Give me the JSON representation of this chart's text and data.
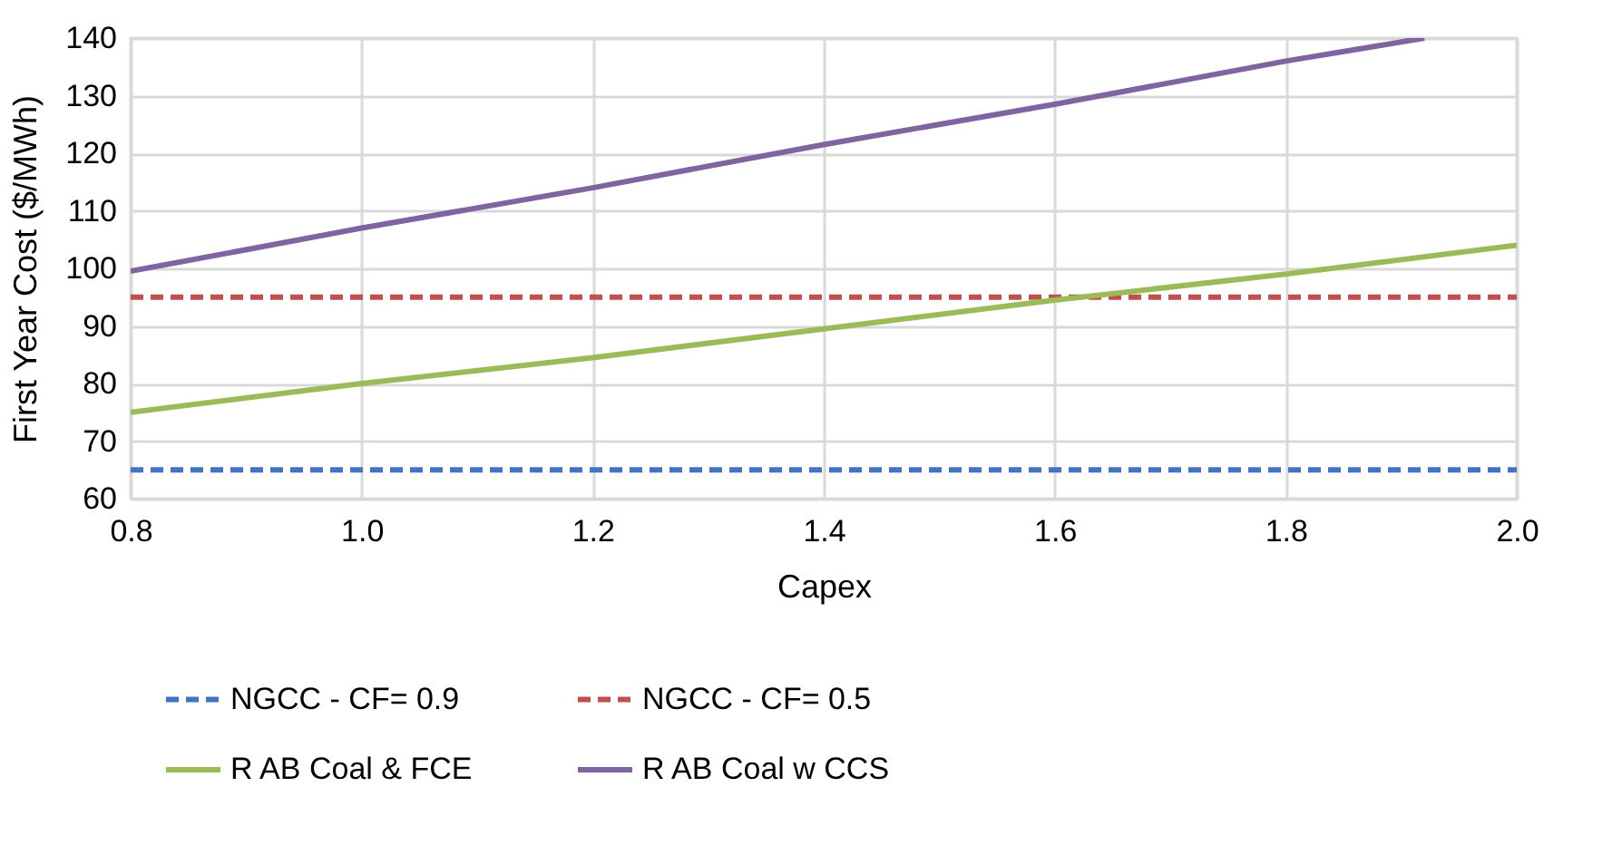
{
  "chart_data": {
    "type": "line",
    "xlabel": "Capex",
    "ylabel": "First Year Cost ($/MWh)",
    "xlim": [
      0.8,
      2.0
    ],
    "xticks": [
      {
        "value": 0.8,
        "label": "0.8"
      },
      {
        "value": 1.0,
        "label": "1.0"
      },
      {
        "value": 1.2,
        "label": "1.2"
      },
      {
        "value": 1.4,
        "label": "1.4"
      },
      {
        "value": 1.6,
        "label": "1.6"
      },
      {
        "value": 1.8,
        "label": "1.8"
      },
      {
        "value": 2.0,
        "label": "2.0"
      }
    ],
    "ylim": [
      60,
      140
    ],
    "yticks": [
      60,
      70,
      80,
      90,
      100,
      110,
      120,
      130,
      140
    ],
    "grid": true,
    "legend": "bottom",
    "marker": "none",
    "series": [
      {
        "name": "NGCC - CF= 0.9",
        "color": "#4472c4",
        "line_style": "dashed",
        "x": [
          0.8,
          2.0
        ],
        "values": [
          65,
          65
        ]
      },
      {
        "name": "NGCC - CF= 0.5",
        "color": "#c0504d",
        "line_style": "dashed",
        "x": [
          0.8,
          2.0
        ],
        "values": [
          95,
          95
        ]
      },
      {
        "name": "R AB Coal & FCE",
        "color": "#9bbb59",
        "line_style": "solid",
        "x": [
          0.8,
          1.0,
          1.2,
          1.4,
          1.6,
          1.8,
          2.0
        ],
        "values": [
          75,
          80,
          84.5,
          89.5,
          94.5,
          99,
          104
        ]
      },
      {
        "name": "R AB Coal w CCS",
        "color": "#8064a2",
        "line_style": "solid",
        "x": [
          0.8,
          1.0,
          1.2,
          1.4,
          1.6,
          1.8,
          1.92
        ],
        "values": [
          99.5,
          107,
          114,
          121.5,
          128.5,
          136,
          140
        ]
      }
    ]
  }
}
